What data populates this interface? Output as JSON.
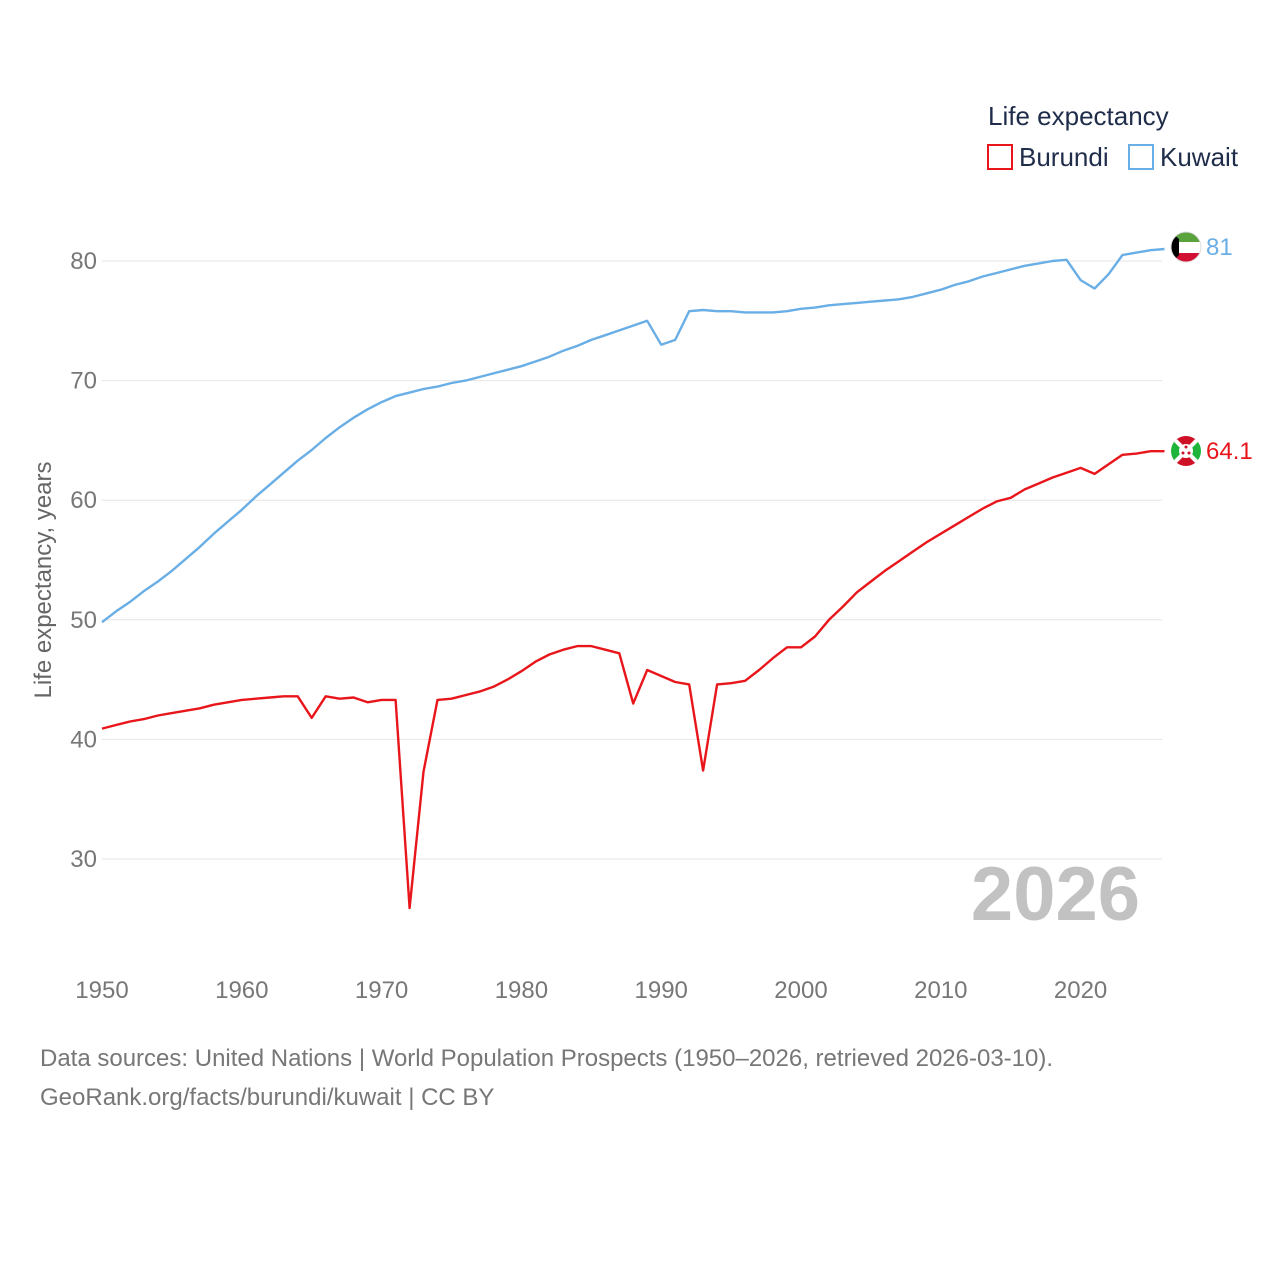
{
  "chart_data": {
    "type": "line",
    "legend_title": "Life expectancy",
    "ylabel": "Life expectancy, years",
    "xlim": [
      1950,
      2026
    ],
    "ylim": [
      22,
      90
    ],
    "xticks": [
      "1950",
      "1960",
      "1970",
      "1980",
      "1990",
      "2000",
      "2010",
      "2020"
    ],
    "yticks": [
      "30",
      "40",
      "50",
      "60",
      "70",
      "80"
    ],
    "year_label": "2026",
    "series": [
      {
        "name": "Burundi",
        "color": "#e8161b",
        "end_label": "64.1",
        "flag": "burundi-flag-icon",
        "x": [
          1950,
          1951,
          1952,
          1953,
          1954,
          1955,
          1956,
          1957,
          1958,
          1959,
          1960,
          1961,
          1962,
          1963,
          1964,
          1965,
          1966,
          1967,
          1968,
          1969,
          1970,
          1971,
          1972,
          1973,
          1974,
          1975,
          1976,
          1977,
          1978,
          1979,
          1980,
          1981,
          1982,
          1983,
          1984,
          1985,
          1986,
          1987,
          1988,
          1989,
          1990,
          1991,
          1992,
          1993,
          1994,
          1995,
          1996,
          1997,
          1998,
          1999,
          2000,
          2001,
          2002,
          2003,
          2004,
          2005,
          2006,
          2007,
          2008,
          2009,
          2010,
          2011,
          2012,
          2013,
          2014,
          2015,
          2016,
          2017,
          2018,
          2019,
          2020,
          2021,
          2022,
          2023,
          2024,
          2025,
          2026
        ],
        "y": [
          40.9,
          41.2,
          41.5,
          41.7,
          42.0,
          42.2,
          42.4,
          42.6,
          42.9,
          43.1,
          43.3,
          43.4,
          43.5,
          43.6,
          43.6,
          41.8,
          43.6,
          43.4,
          43.5,
          43.1,
          43.3,
          43.3,
          25.9,
          37.3,
          43.3,
          43.4,
          43.7,
          44.0,
          44.4,
          45.0,
          45.7,
          46.5,
          47.1,
          47.5,
          47.8,
          47.8,
          47.5,
          47.2,
          43.0,
          45.8,
          45.3,
          44.8,
          44.6,
          37.4,
          44.6,
          44.7,
          44.9,
          45.8,
          46.8,
          47.7,
          47.7,
          48.6,
          50.0,
          51.1,
          52.3,
          53.2,
          54.1,
          54.9,
          55.7,
          56.5,
          57.2,
          57.9,
          58.6,
          59.3,
          59.9,
          60.2,
          60.9,
          61.4,
          61.9,
          62.3,
          62.7,
          62.2,
          63.0,
          63.8,
          63.9,
          64.1,
          64.1
        ]
      },
      {
        "name": "Kuwait",
        "color": "#6aaee6",
        "end_label": "81",
        "flag": "kuwait-flag-icon",
        "x": [
          1950,
          1951,
          1952,
          1953,
          1954,
          1955,
          1956,
          1957,
          1958,
          1959,
          1960,
          1961,
          1962,
          1963,
          1964,
          1965,
          1966,
          1967,
          1968,
          1969,
          1970,
          1971,
          1972,
          1973,
          1974,
          1975,
          1976,
          1977,
          1978,
          1979,
          1980,
          1981,
          1982,
          1983,
          1984,
          1985,
          1986,
          1987,
          1988,
          1989,
          1990,
          1991,
          1992,
          1993,
          1994,
          1995,
          1996,
          1997,
          1998,
          1999,
          2000,
          2001,
          2002,
          2003,
          2004,
          2005,
          2006,
          2007,
          2008,
          2009,
          2010,
          2011,
          2012,
          2013,
          2014,
          2015,
          2016,
          2017,
          2018,
          2019,
          2020,
          2021,
          2022,
          2023,
          2024,
          2025,
          2026
        ],
        "y": [
          49.8,
          50.7,
          51.5,
          52.4,
          53.2,
          54.1,
          55.1,
          56.1,
          57.2,
          58.2,
          59.2,
          60.3,
          61.3,
          62.3,
          63.3,
          64.2,
          65.2,
          66.1,
          66.9,
          67.6,
          68.2,
          68.7,
          69.0,
          69.3,
          69.5,
          69.8,
          70.0,
          70.3,
          70.6,
          70.9,
          71.2,
          71.6,
          72.0,
          72.5,
          72.9,
          73.4,
          73.8,
          74.2,
          74.6,
          75.0,
          73.0,
          73.4,
          75.8,
          75.9,
          75.8,
          75.8,
          75.7,
          75.7,
          75.7,
          75.8,
          76.0,
          76.1,
          76.3,
          76.4,
          76.5,
          76.6,
          76.7,
          76.8,
          77.0,
          77.3,
          77.6,
          78.0,
          78.3,
          78.7,
          79.0,
          79.3,
          79.6,
          79.8,
          80.0,
          80.1,
          78.4,
          77.7,
          78.9,
          80.5,
          80.7,
          80.9,
          81.0
        ]
      }
    ]
  },
  "footer": {
    "line1": "Data sources: United Nations | World Population Prospects (1950–2026, retrieved 2026-03-10).",
    "line2": "GeoRank.org/facts/burundi/kuwait | CC BY"
  }
}
